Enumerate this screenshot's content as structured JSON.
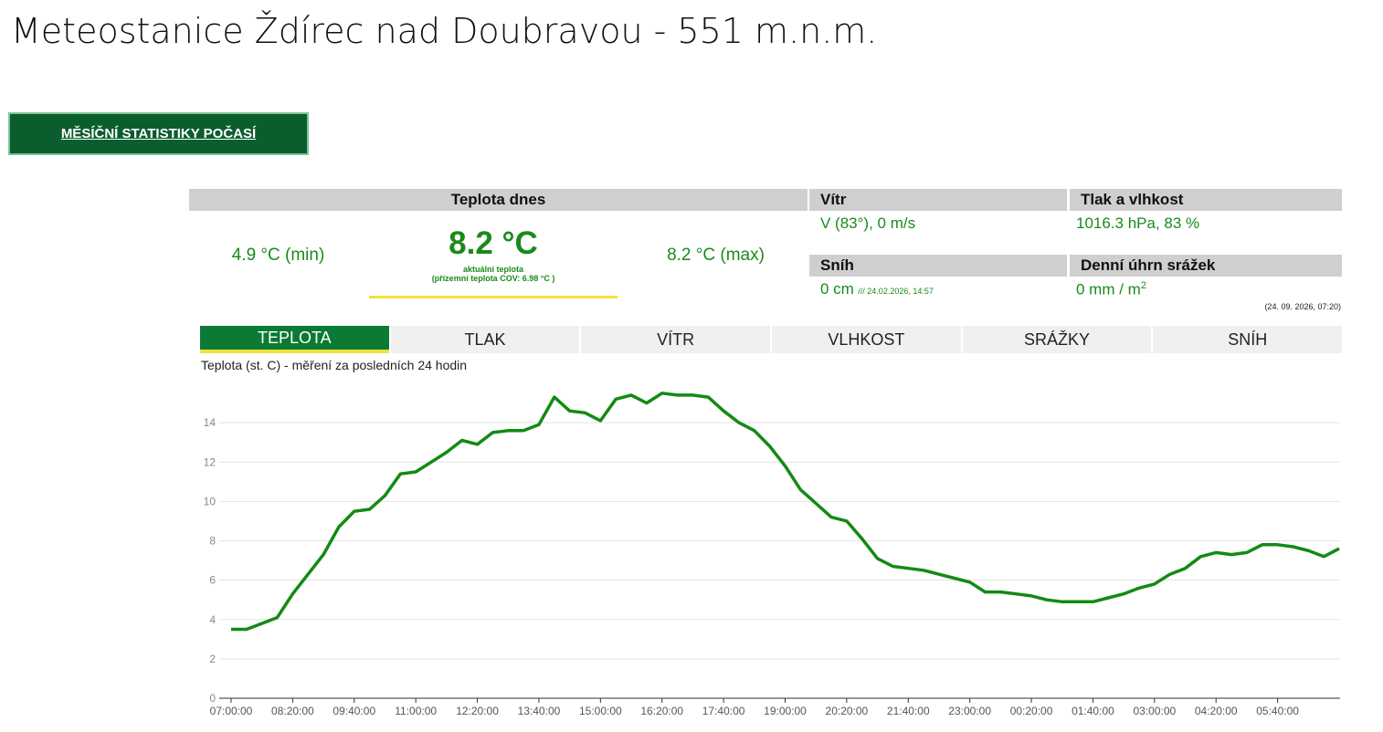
{
  "header": {
    "title": "Meteostanice Ždírec nad Doubravou - 551 m.n.m."
  },
  "button": {
    "label": "MĚSÍČNÍ STATISTIKY POČASÍ"
  },
  "temperature": {
    "heading": "Teplota dnes",
    "min": "4.9 °C (min)",
    "current": "8.2 °C",
    "current_label": "aktuální teplota",
    "ground": "(přízemní teplota COV: 6.98 °C )",
    "max": "8.2 °C (max)"
  },
  "wind": {
    "heading": "Vítr",
    "value": "V (83°), 0 m/s"
  },
  "pressure": {
    "heading": "Tlak a vlhkost",
    "value": "1016.3 hPa, 83 %"
  },
  "snow": {
    "heading": "Sníh",
    "value": "0 cm",
    "note": "/// 24.02.2026, 14:57"
  },
  "rain": {
    "heading": "Denní úhrn srážek",
    "value": "0 mm / m",
    "sup": "2"
  },
  "updated": "(24. 09. 2026, 07:20)",
  "tabs": [
    "TEPLOTA",
    "TLAK",
    "VÍTR",
    "VLHKOST",
    "SRÁŽKY",
    "SNÍH"
  ],
  "chart_data": {
    "type": "line",
    "title": "Teplota (st. C) - měření za posledních 24 hodin",
    "color": "#138a13",
    "categories": [
      "07:00:00",
      null,
      null,
      null,
      "08:20:00",
      null,
      null,
      null,
      "09:40:00",
      null,
      null,
      null,
      "11:00:00",
      null,
      null,
      null,
      "12:20:00",
      null,
      null,
      null,
      "13:40:00",
      null,
      null,
      null,
      "15:00:00",
      null,
      null,
      null,
      "16:20:00",
      null,
      null,
      null,
      "17:40:00",
      null,
      null,
      null,
      "19:00:00",
      null,
      null,
      null,
      "20:20:00",
      null,
      null,
      null,
      "21:40:00",
      null,
      null,
      null,
      "23:00:00",
      null,
      null,
      null,
      "00:20:00",
      null,
      null,
      null,
      "01:40:00",
      null,
      null,
      null,
      "03:00:00",
      null,
      null,
      null,
      "04:20:00",
      null,
      null,
      null,
      "05:40:00",
      null,
      null,
      null,
      null
    ],
    "values": [
      3.5,
      3.5,
      3.8,
      4.1,
      5.3,
      6.3,
      7.3,
      8.7,
      9.5,
      9.6,
      10.3,
      11.4,
      11.5,
      12.0,
      12.5,
      13.1,
      12.9,
      13.5,
      13.6,
      13.6,
      13.9,
      15.3,
      14.6,
      14.5,
      14.1,
      15.2,
      15.4,
      15.0,
      15.5,
      15.4,
      15.4,
      15.3,
      14.6,
      14.0,
      13.6,
      12.8,
      11.8,
      10.6,
      9.9,
      9.2,
      9.0,
      8.1,
      7.1,
      6.7,
      6.6,
      6.5,
      6.3,
      6.1,
      5.9,
      5.4,
      5.4,
      5.3,
      5.2,
      5.0,
      4.9,
      4.9,
      4.9,
      5.1,
      5.3,
      5.6,
      5.8,
      6.3,
      6.6,
      7.2,
      7.4,
      7.3,
      7.4,
      7.8,
      7.8,
      7.7,
      7.5,
      7.2,
      7.6
    ],
    "ylim": [
      0,
      16
    ],
    "yticks": [
      0,
      2,
      4,
      6,
      8,
      10,
      12,
      14
    ],
    "grid": true
  }
}
